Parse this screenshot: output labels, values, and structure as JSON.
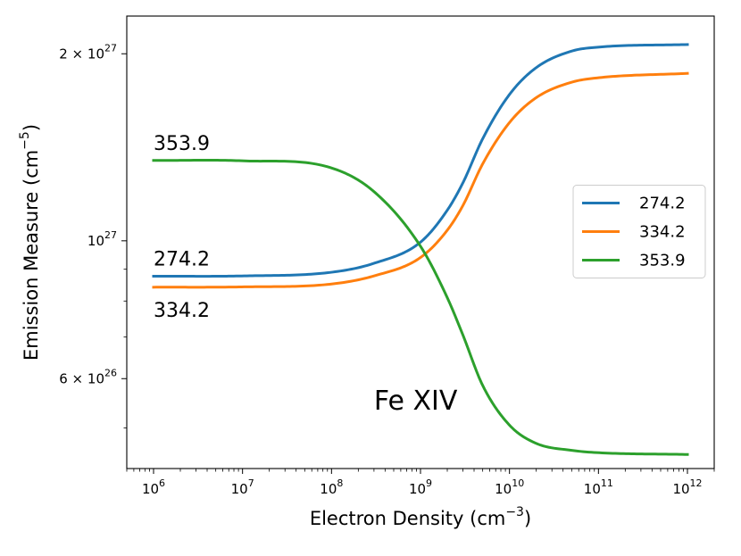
{
  "chart_data": {
    "type": "line",
    "title": "",
    "xlabel": "Electron Density (cm",
    "xlabel_sup": "−3",
    "xlabel_close": ")",
    "ylabel": "Emission Measure (cm",
    "ylabel_sup": "−5",
    "ylabel_close": ")",
    "xscale": "log",
    "yscale": "log",
    "xlim": [
      500000,
      2000000000000
    ],
    "ylim": [
      4.3e+26,
      2.3e+27
    ],
    "x_ticks": [
      {
        "value": 1000000.0,
        "base": "10",
        "exp": "6"
      },
      {
        "value": 10000000.0,
        "base": "10",
        "exp": "7"
      },
      {
        "value": 100000000.0,
        "base": "10",
        "exp": "8"
      },
      {
        "value": 1000000000.0,
        "base": "10",
        "exp": "9"
      },
      {
        "value": 10000000000.0,
        "base": "10",
        "exp": "10"
      },
      {
        "value": 100000000000.0,
        "base": "10",
        "exp": "11"
      },
      {
        "value": 1000000000000.0,
        "base": "10",
        "exp": "12"
      }
    ],
    "y_ticks": [
      {
        "value": 6e+26,
        "prefix": "6 × 10",
        "exp": "26"
      },
      {
        "value": 1e+27,
        "prefix": "10",
        "exp": "27"
      },
      {
        "value": 2e+27,
        "prefix": "2 × 10",
        "exp": "27"
      }
    ],
    "y_minor_ticks": [
      5e+26,
      7e+26,
      8e+26,
      9e+26
    ],
    "x": [
      1000000.0,
      10000000.0,
      100000000.0,
      300000000.0,
      1000000000.0,
      2000000000.0,
      3000000000.0,
      5000000000.0,
      10000000000.0,
      20000000000.0,
      50000000000.0,
      100000000000.0,
      1000000000000.0
    ],
    "series": [
      {
        "name": "274.2",
        "color": "#1f77b4",
        "values": [
          8.77e+26,
          8.78e+26,
          8.9e+26,
          9.2e+26,
          9.95e+26,
          1.12e+27,
          1.24e+27,
          1.46e+27,
          1.72e+27,
          1.9e+27,
          2.02e+27,
          2.05e+27,
          2.07e+27
        ]
      },
      {
        "name": "334.2",
        "color": "#ff7f0e",
        "values": [
          8.42e+26,
          8.43e+26,
          8.52e+26,
          8.78e+26,
          9.4e+26,
          1.04e+27,
          1.14e+27,
          1.33e+27,
          1.55e+27,
          1.7e+27,
          1.8e+27,
          1.83e+27,
          1.86e+27
        ]
      },
      {
        "name": "353.9",
        "color": "#2ca02c",
        "values": [
          1.347e+27,
          1.345e+27,
          1.31e+27,
          1.2e+27,
          9.8e+26,
          8.1e+26,
          7.05e+26,
          5.85e+26,
          5.05e+26,
          4.72e+26,
          4.6e+26,
          4.56e+26,
          4.53e+26
        ]
      }
    ],
    "annotations": [
      {
        "text": "353.9",
        "series": 2,
        "size": "normal",
        "dy": -12
      },
      {
        "text": "274.2",
        "series": 0,
        "size": "normal",
        "dy": -12
      },
      {
        "text": "334.2",
        "series": 1,
        "size": "normal",
        "dy": 33
      },
      {
        "text": "Fe XIV",
        "x": 300000000.0,
        "y": 5.35e+26,
        "size": "big"
      }
    ],
    "legend": {
      "position": "center-right",
      "entries": [
        "274.2",
        "334.2",
        "353.9"
      ]
    }
  }
}
